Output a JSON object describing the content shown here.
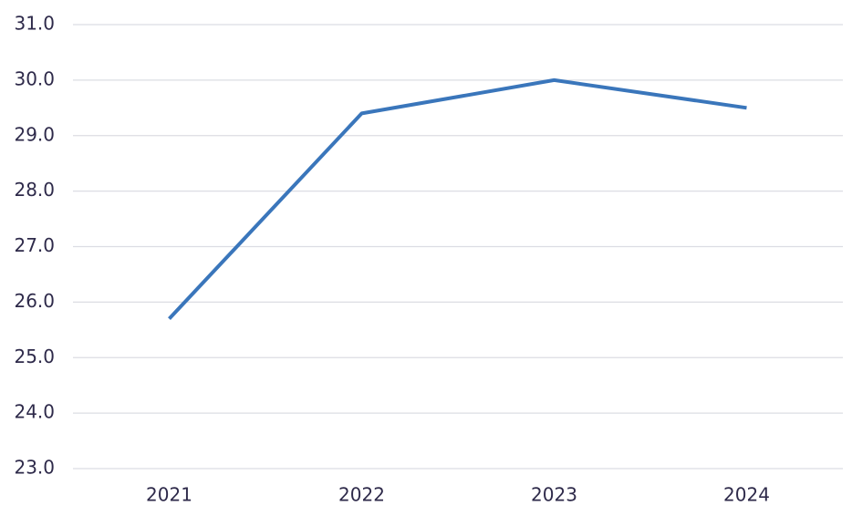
{
  "chart_data": {
    "type": "line",
    "categories": [
      "2021",
      "2022",
      "2023",
      "2024"
    ],
    "series": [
      {
        "color": "#3a76bb",
        "values": [
          25.7,
          29.4,
          30.0,
          29.5
        ]
      }
    ],
    "ylim": [
      23,
      31
    ],
    "yticks": [
      {
        "value": 23,
        "label": "23.0"
      },
      {
        "value": 24,
        "label": "24.0"
      },
      {
        "value": 25,
        "label": "25.0"
      },
      {
        "value": 26,
        "label": "26.0"
      },
      {
        "value": 27,
        "label": "27.0"
      },
      {
        "value": 28,
        "label": "28.0"
      },
      {
        "value": 29,
        "label": "29.0"
      },
      {
        "value": 30,
        "label": "30.0"
      },
      {
        "value": 31,
        "label": "31.0"
      }
    ],
    "grid": true
  }
}
